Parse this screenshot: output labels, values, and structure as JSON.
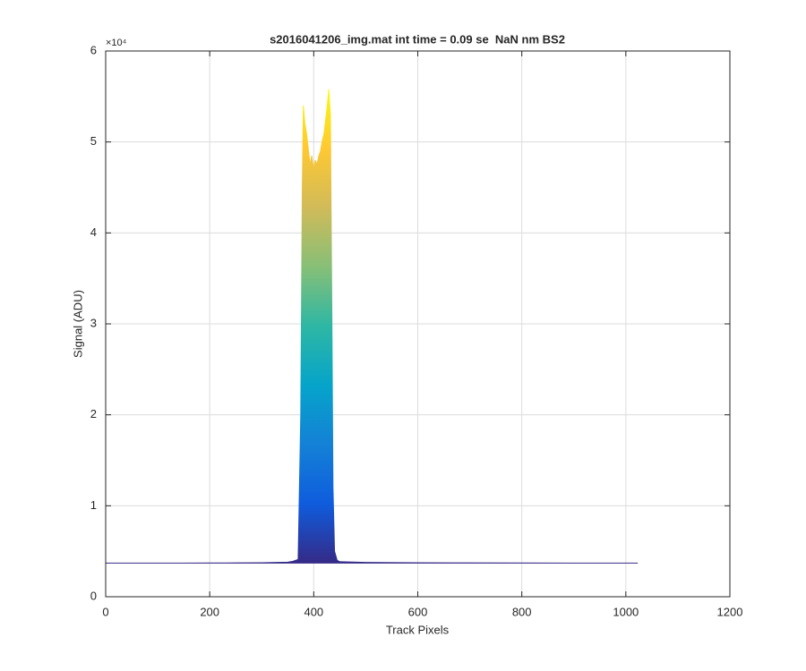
{
  "chart_data": {
    "type": "area",
    "title": "s2016041206_img.mat int time = 0.09 se  NaN nm BS2",
    "xlabel": "Track Pixels",
    "ylabel": "Signal (ADU)",
    "y_exponent_label": "×10⁴",
    "x": [
      0,
      50,
      100,
      150,
      200,
      250,
      300,
      350,
      360,
      370,
      375,
      378,
      380,
      383,
      386,
      390,
      393,
      396,
      400,
      403,
      406,
      410,
      413,
      416,
      420,
      423,
      426,
      429,
      432,
      435,
      437,
      440,
      445,
      450,
      500,
      600,
      700,
      800,
      900,
      1000,
      1023
    ],
    "series": [
      {
        "values": [
          3700,
          3700,
          3700,
          3700,
          3710,
          3720,
          3740,
          3800,
          3900,
          4100,
          20000,
          45000,
          54000,
          52000,
          51000,
          49000,
          47500,
          48500,
          47000,
          48000,
          47500,
          48500,
          49000,
          50000,
          51000,
          52500,
          54000,
          55800,
          53000,
          30000,
          12000,
          5000,
          4000,
          3850,
          3780,
          3740,
          3720,
          3710,
          3700,
          3700,
          3700
        ]
      }
    ],
    "colormap": [
      "#352a87",
      "#0f5cdd",
      "#1481d6",
      "#06a4ca",
      "#2eb7a4",
      "#87bf77",
      "#d1bb59",
      "#fec832",
      "#f9fb0e"
    ],
    "xlim": [
      0,
      1200
    ],
    "xticks": [
      0,
      200,
      400,
      600,
      800,
      1000,
      1200
    ],
    "ylim": [
      0,
      60000
    ],
    "yticks": [
      {
        "value": 0,
        "label": "0"
      },
      {
        "value": 10000,
        "label": "1"
      },
      {
        "value": 20000,
        "label": "2"
      },
      {
        "value": 30000,
        "label": "3"
      },
      {
        "value": 40000,
        "label": "4"
      },
      {
        "value": 50000,
        "label": "5"
      },
      {
        "value": 60000,
        "label": "6"
      }
    ],
    "grid": true
  }
}
